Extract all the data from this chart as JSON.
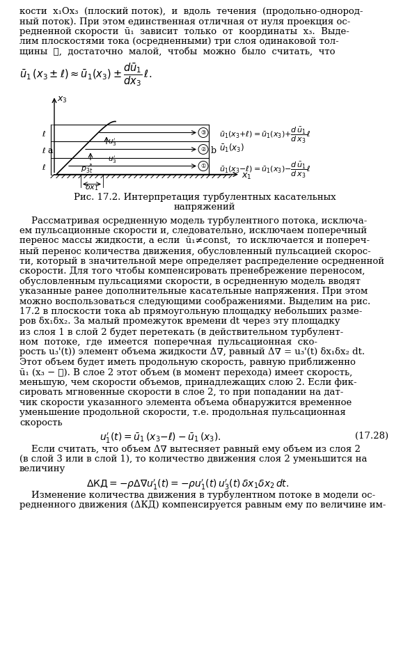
{
  "top_text_lines": [
    "кости  x₁Ox₃  (плоский поток),  и  вдоль  течения  (продольно-однород-",
    "ный поток). При этом единственная отличная от нуля проекция ос-",
    "редненной скорости  ū₁  зависит  только  от  координаты  x₃.  Выде-",
    "лим плоскостями тока (осредненными) три слоя одинаковой тол-",
    "щины  ℓ,  достаточно  малой,  чтобы  можно  было  считать,  что"
  ],
  "caption_line1": "Рис. 17.2. Интерпретация турбулентных касательных",
  "caption_line2": "напряжений",
  "body_text": [
    "    Рассматривая осредненную модель турбулентного потока, исключа-",
    "ем пульсационные скорости и, следовательно, исключаем поперечный",
    "перенос массы жидкости, а если  ū₁≠const,  то исключается и попереч-",
    "ный перенос количества движения, обусловленный пульсацией скорос-",
    "ти, который в значительной мере определяет распределение осредненной",
    "скорости. Для того чтобы компенсировать пренебрежение переносом,",
    "обусловленным пульсациями скорости, в осредненную модель вводят",
    "указанные ранее дополнительные касательные напряжения. При этом",
    "можно воспользоваться следующими соображениями. Выделим на рис.",
    "17.2 в плоскости тока ab прямоугольную площадку небольших разме-",
    "ров δx₁δx₂. За малый промежуток времени dt через эту площадку",
    "из слоя 1 в слой 2 будет перетекать (в действительном турбулент-",
    "ном  потоке,  где  имеется  поперечная  пульсационная  ско-",
    "рость u₃'(t)) элемент объема жидкости Δ∇, равный Δ∇ = u₃'(t) δx₁δx₂ dt.",
    "Этот объем будет иметь продольную скорость, равную приближенно",
    "ū₁ (x₃ − ℓ). В слое 2 этот объем (в момент перехода) имеет скорость,",
    "меньшую, чем скорости объемов, принадлежащих слою 2. Если фик-",
    "сировать мгновенные скорости в слое 2, то при попадании на дат-",
    "чик скорости указанного элемента объема обнаружится временное",
    "уменьшение продольной скорости, т.е. продольная пульсационная",
    "скорость"
  ],
  "after_eq_text": [
    "    Если считать, что объем Δ∇ вытесняет равный ему объем из слоя 2",
    "(в слой 3 или в слой 1), то количество движения слоя 2 уменьшится на",
    "величину"
  ],
  "final_text": [
    "    Изменение количества движения в турбулентном потоке в модели ос-",
    "редненного движения (ΔКД) компенсируется равным ему по величине им-"
  ]
}
